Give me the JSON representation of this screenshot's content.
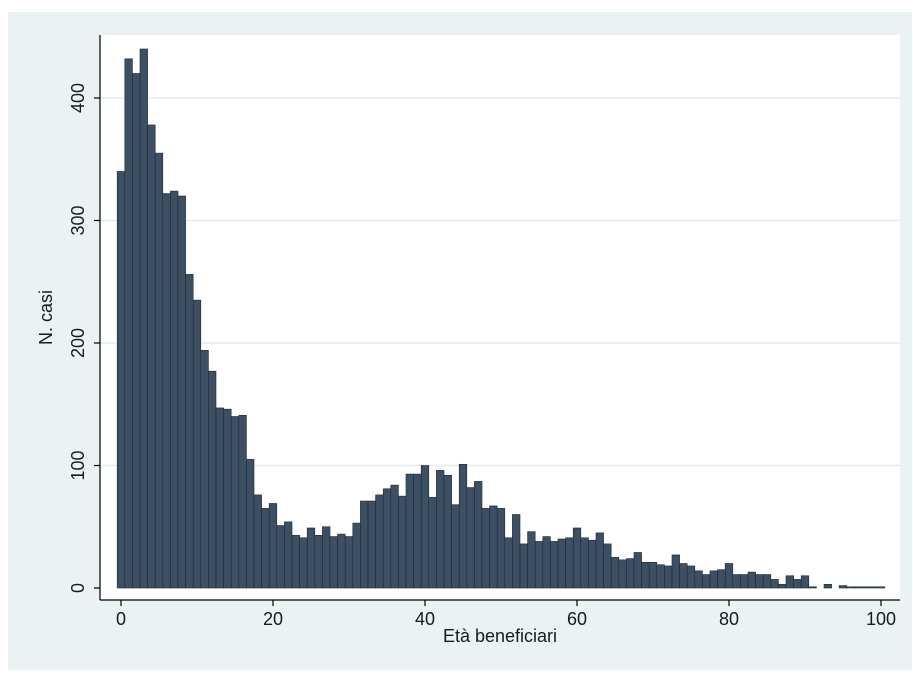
{
  "chart_data": {
    "type": "bar",
    "title": "",
    "xlabel": "Età beneficiari",
    "ylabel": "N. casi",
    "xlim": [
      -2,
      102
    ],
    "ylim": [
      0,
      450
    ],
    "xticks": [
      0,
      20,
      40,
      60,
      80,
      100
    ],
    "yticks": [
      0,
      100,
      200,
      300,
      400
    ],
    "grid": "horizontal",
    "legend": "none",
    "bin_width": 1,
    "x": [
      0,
      1,
      2,
      3,
      4,
      5,
      6,
      7,
      8,
      9,
      10,
      11,
      12,
      13,
      14,
      15,
      16,
      17,
      18,
      19,
      20,
      21,
      22,
      23,
      24,
      25,
      26,
      27,
      28,
      29,
      30,
      31,
      32,
      33,
      34,
      35,
      36,
      37,
      38,
      39,
      40,
      41,
      42,
      43,
      44,
      45,
      46,
      47,
      48,
      49,
      50,
      51,
      52,
      53,
      54,
      55,
      56,
      57,
      58,
      59,
      60,
      61,
      62,
      63,
      64,
      65,
      66,
      67,
      68,
      69,
      70,
      71,
      72,
      73,
      74,
      75,
      76,
      77,
      78,
      79,
      80,
      81,
      82,
      83,
      84,
      85,
      86,
      87,
      88,
      89,
      90,
      91,
      92,
      93,
      94,
      95,
      96,
      97,
      98,
      99,
      100
    ],
    "values": [
      340,
      432,
      420,
      440,
      378,
      355,
      322,
      324,
      320,
      256,
      235,
      194,
      177,
      147,
      146,
      140,
      141,
      105,
      76,
      65,
      69,
      51,
      54,
      43,
      41,
      49,
      43,
      50,
      42,
      44,
      42,
      53,
      71,
      71,
      76,
      81,
      84,
      75,
      93,
      93,
      100,
      74,
      96,
      92,
      68,
      101,
      82,
      87,
      65,
      67,
      65,
      41,
      60,
      36,
      46,
      38,
      42,
      38,
      40,
      41,
      49,
      41,
      39,
      45,
      36,
      25,
      23,
      24,
      29,
      21,
      21,
      19,
      18,
      27,
      20,
      18,
      14,
      11,
      14,
      15,
      20,
      11,
      11,
      13,
      11,
      11,
      7,
      3,
      10,
      7,
      10,
      1,
      0,
      3,
      0,
      2,
      1,
      1,
      1,
      1,
      1
    ],
    "bar_color": "#3d4f63",
    "bar_edge_color": "#1b2a36",
    "plot_background": "#ffffff",
    "outer_background": "#eaf2f3"
  }
}
